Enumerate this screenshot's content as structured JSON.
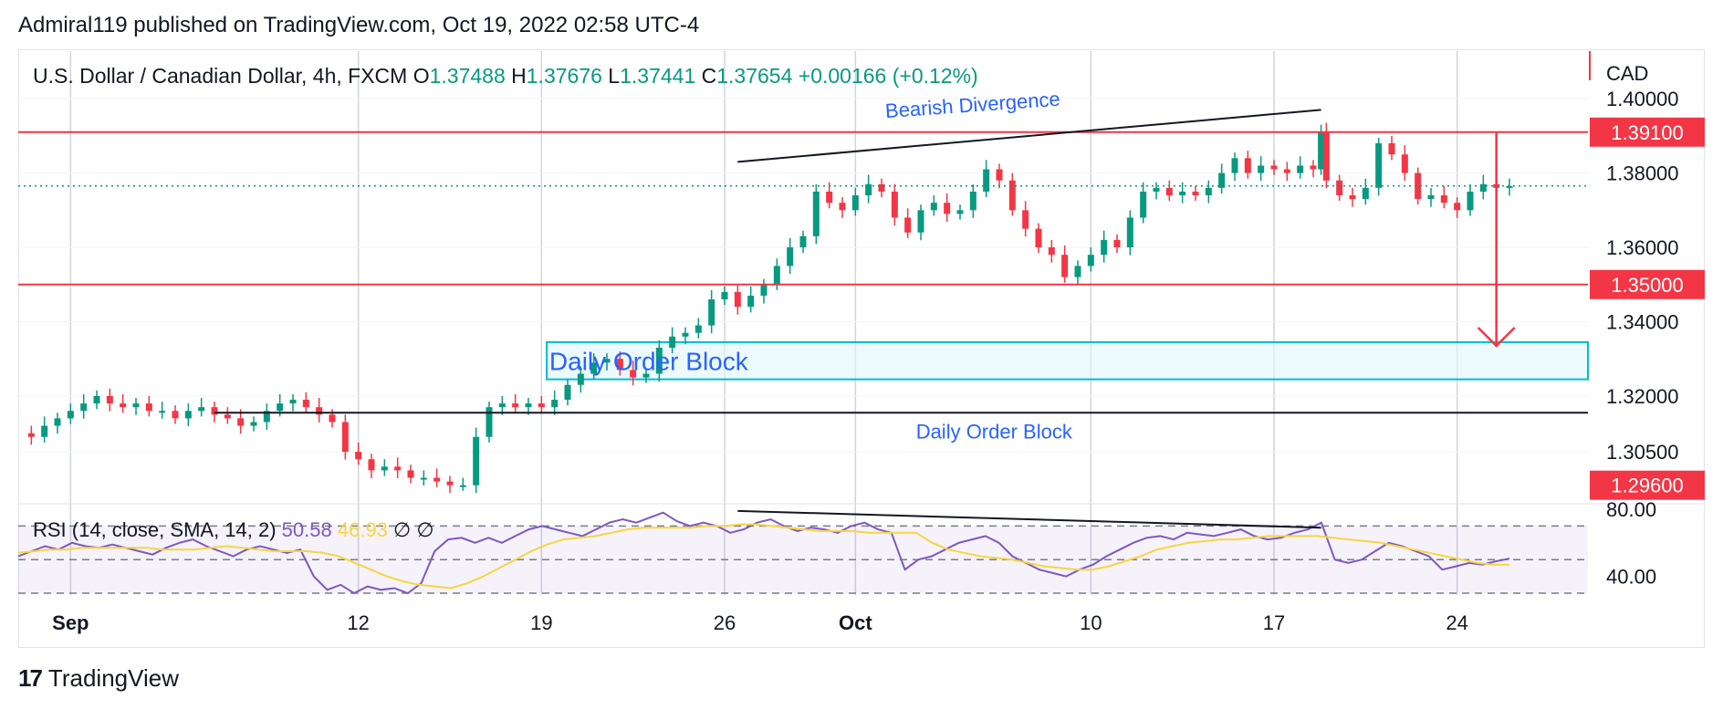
{
  "header": {
    "publisher_line": "Admiral119 published on TradingView.com, Oct 19, 2022 02:58 UTC-4"
  },
  "legend": {
    "symbol": "U.S. Dollar / Canadian Dollar, 4h, FXCM",
    "o_label": "O",
    "o_value": "1.37488",
    "h_label": "H",
    "h_value": "1.37676",
    "l_label": "L",
    "l_value": "1.37441",
    "c_label": "C",
    "c_value": "1.37654",
    "change": "+0.00166 (+0.12%)"
  },
  "rsi_legend": {
    "label": "RSI (14, close, SMA, 14, 2)",
    "value": "50.58",
    "sma_value": "46.93",
    "sym1": "∅",
    "sym2": "∅"
  },
  "footer": {
    "logo_mark": "17",
    "brand": "TradingView"
  },
  "colors": {
    "up": "#089981",
    "down": "#f23645",
    "rsi": "#7e57c2",
    "rsi_sma": "#f7d542",
    "zone_fill": "#e0f7fa",
    "zone_border": "#00bcd4",
    "hline": "#f23645",
    "grid": "#d1d4dc"
  },
  "chart_data": [
    {
      "type": "candlestick",
      "title": "U.S. Dollar / Canadian Dollar, 4h, FXCM",
      "currency": "CAD",
      "x_tick_labels": [
        "Sep",
        "12",
        "19",
        "26",
        "Oct",
        "10",
        "17",
        "24"
      ],
      "x_tick_days": [
        0,
        11,
        18,
        25,
        30,
        39,
        46,
        53
      ],
      "y_tick_labels": [
        "1.40000",
        "1.38000",
        "1.36000",
        "1.34000",
        "1.32000",
        "1.30500"
      ],
      "y_tick_values": [
        1.4,
        1.38,
        1.36,
        1.34,
        1.32,
        1.305
      ],
      "ylim": [
        1.292,
        1.402
      ],
      "xlim_days": [
        -2,
        58
      ],
      "price_labels": [
        "1.39100",
        "1.35000",
        "1.29600"
      ],
      "price_label_values": [
        1.391,
        1.35,
        1.296
      ],
      "horizontal_lines": [
        1.391,
        1.35
      ],
      "last_price": 1.37654,
      "grid": true,
      "series_close_path": [
        [
          -2,
          1.31
        ],
        [
          -1.5,
          1.309
        ],
        [
          -1,
          1.312
        ],
        [
          -0.5,
          1.314
        ],
        [
          0,
          1.316
        ],
        [
          0.5,
          1.318
        ],
        [
          1,
          1.32
        ],
        [
          1.5,
          1.318
        ],
        [
          2,
          1.317
        ],
        [
          2.5,
          1.318
        ],
        [
          3,
          1.316
        ],
        [
          3.5,
          1.316
        ],
        [
          4,
          1.314
        ],
        [
          4.5,
          1.316
        ],
        [
          5,
          1.317
        ],
        [
          5.5,
          1.315
        ],
        [
          6,
          1.314
        ],
        [
          6.5,
          1.312
        ],
        [
          7,
          1.313
        ],
        [
          7.5,
          1.316
        ],
        [
          8,
          1.318
        ],
        [
          8.5,
          1.319
        ],
        [
          9,
          1.317
        ],
        [
          9.5,
          1.315
        ],
        [
          10,
          1.313
        ],
        [
          10.5,
          1.305
        ],
        [
          11,
          1.303
        ],
        [
          11.5,
          1.3
        ],
        [
          12,
          1.301
        ],
        [
          12.5,
          1.3
        ],
        [
          13,
          1.298
        ],
        [
          13.5,
          1.298
        ],
        [
          14,
          1.297
        ],
        [
          14.5,
          1.296
        ],
        [
          15,
          1.296
        ],
        [
          15.5,
          1.309
        ],
        [
          16,
          1.317
        ],
        [
          16.5,
          1.318
        ],
        [
          17,
          1.317
        ],
        [
          17.5,
          1.318
        ],
        [
          18,
          1.317
        ],
        [
          18.5,
          1.319
        ],
        [
          19,
          1.323
        ],
        [
          19.5,
          1.326
        ],
        [
          20,
          1.329
        ],
        [
          20.5,
          1.33
        ],
        [
          21,
          1.327
        ],
        [
          21.5,
          1.325
        ],
        [
          22,
          1.326
        ],
        [
          22.5,
          1.333
        ],
        [
          23,
          1.336
        ],
        [
          23.5,
          1.337
        ],
        [
          24,
          1.339
        ],
        [
          24.5,
          1.346
        ],
        [
          25,
          1.348
        ],
        [
          25.5,
          1.344
        ],
        [
          26,
          1.347
        ],
        [
          26.5,
          1.35
        ],
        [
          27,
          1.355
        ],
        [
          27.5,
          1.36
        ],
        [
          28,
          1.363
        ],
        [
          28.5,
          1.375
        ],
        [
          29,
          1.372
        ],
        [
          29.5,
          1.37
        ],
        [
          30,
          1.374
        ],
        [
          30.5,
          1.377
        ],
        [
          31,
          1.375
        ],
        [
          31.5,
          1.368
        ],
        [
          32,
          1.364
        ],
        [
          32.5,
          1.37
        ],
        [
          33,
          1.372
        ],
        [
          33.5,
          1.369
        ],
        [
          34,
          1.37
        ],
        [
          34.5,
          1.375
        ],
        [
          35,
          1.381
        ],
        [
          35.5,
          1.378
        ],
        [
          36,
          1.37
        ],
        [
          36.5,
          1.365
        ],
        [
          37,
          1.36
        ],
        [
          37.5,
          1.358
        ],
        [
          38,
          1.352
        ],
        [
          38.5,
          1.355
        ],
        [
          39,
          1.358
        ],
        [
          39.5,
          1.362
        ],
        [
          40,
          1.36
        ],
        [
          40.5,
          1.368
        ],
        [
          41,
          1.375
        ],
        [
          41.5,
          1.376
        ],
        [
          42,
          1.374
        ],
        [
          42.5,
          1.375
        ],
        [
          43,
          1.374
        ],
        [
          43.5,
          1.376
        ],
        [
          44,
          1.38
        ],
        [
          44.5,
          1.384
        ],
        [
          45,
          1.38
        ],
        [
          45.5,
          1.382
        ],
        [
          46,
          1.381
        ],
        [
          46.5,
          1.38
        ],
        [
          47,
          1.382
        ],
        [
          47.5,
          1.381
        ],
        [
          47.8,
          1.391
        ],
        [
          48,
          1.378
        ],
        [
          48.5,
          1.374
        ],
        [
          49,
          1.373
        ],
        [
          49.5,
          1.376
        ],
        [
          50,
          1.388
        ],
        [
          50.5,
          1.385
        ],
        [
          51,
          1.38
        ],
        [
          51.5,
          1.373
        ],
        [
          52,
          1.374
        ],
        [
          52.5,
          1.372
        ],
        [
          53,
          1.37
        ],
        [
          53.5,
          1.375
        ],
        [
          54,
          1.377
        ],
        [
          54.5,
          1.376
        ],
        [
          55,
          1.3765
        ]
      ],
      "annotations": [
        "Bearish Divergence",
        "Daily Order Block",
        "Daily Order Block"
      ],
      "order_block_zone": [
        1.3245,
        1.3345
      ],
      "order_block_line": 1.3155,
      "divergence_line": [
        [
          25.5,
          1.383
        ],
        [
          47.8,
          1.397
        ]
      ],
      "target_arrow": {
        "x_day": 54.5,
        "from": 1.391,
        "to": 1.3335
      }
    },
    {
      "type": "line",
      "title": "RSI (14, close, SMA, 14, 2)",
      "y_tick_labels": [
        "80.00",
        "40.00"
      ],
      "y_tick_values": [
        80,
        40
      ],
      "ylim": [
        30,
        80
      ],
      "bands": [
        70,
        50,
        30
      ],
      "series": [
        {
          "name": "RSI",
          "values": [
            52,
            55,
            58,
            56,
            60,
            58,
            57,
            59,
            57,
            55,
            53,
            57,
            60,
            62,
            58,
            55,
            52,
            56,
            58,
            56,
            54,
            56,
            40,
            32,
            35,
            30,
            34,
            32,
            33,
            30,
            36,
            55,
            62,
            63,
            60,
            63,
            60,
            64,
            68,
            70,
            68,
            66,
            64,
            68,
            72,
            74,
            72,
            75,
            78,
            73,
            70,
            72,
            70,
            66,
            68,
            72,
            74,
            70,
            67,
            69,
            68,
            66,
            70,
            72,
            68,
            66,
            44,
            50,
            52,
            56,
            60,
            62,
            64,
            60,
            52,
            48,
            44,
            42,
            40,
            44,
            47,
            52,
            56,
            60,
            63,
            64,
            62,
            66,
            65,
            64,
            66,
            68,
            64,
            62,
            63,
            66,
            68,
            72,
            50,
            48,
            50,
            55,
            60,
            58,
            55,
            52,
            44,
            46,
            48,
            47,
            49,
            50.58
          ]
        },
        {
          "name": "SMA",
          "values": [
            54,
            55,
            56,
            56,
            57,
            57,
            57,
            57,
            57,
            56,
            56,
            56,
            57,
            58,
            57,
            56,
            55,
            55,
            55,
            54,
            52,
            48,
            44,
            40,
            37,
            35,
            34,
            33,
            36,
            40,
            45,
            50,
            55,
            59,
            62,
            63,
            64,
            66,
            68,
            69,
            69,
            69,
            69,
            70,
            70,
            71,
            71,
            70,
            69,
            68,
            67,
            67,
            67,
            66,
            66,
            66,
            66,
            60,
            56,
            54,
            52,
            51,
            50,
            48,
            46,
            45,
            44,
            44,
            46,
            49,
            52,
            56,
            58,
            60,
            61,
            62,
            62,
            63,
            64,
            64,
            64,
            64,
            63,
            62,
            61,
            60,
            58,
            56,
            54,
            52,
            50,
            48,
            47,
            46.93
          ]
        }
      ],
      "divergence_line": [
        [
          25.5,
          79
        ],
        [
          47.8,
          69
        ]
      ]
    }
  ]
}
